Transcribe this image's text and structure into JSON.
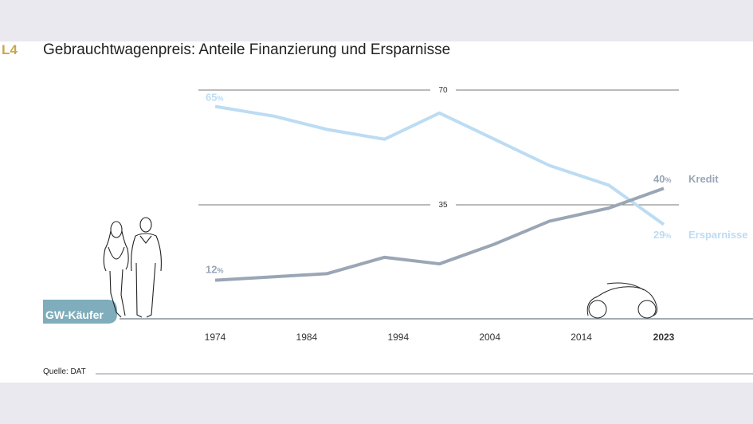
{
  "figure_label": "L4",
  "chart_data": {
    "type": "line",
    "title": "Gebrauchtwagenpreis: Anteile Finanzierung und Ersparnisse",
    "xlabel": "",
    "ylabel": "",
    "x_ticks": [
      "1974",
      "1984",
      "1994",
      "2004",
      "2014",
      "2023"
    ],
    "x_tick_values": [
      1974,
      1984,
      1994,
      2004,
      2014,
      2023
    ],
    "xlim": [
      1974,
      2023
    ],
    "y_gridlines": [
      35,
      70
    ],
    "ylim": [
      0,
      70
    ],
    "grid": true,
    "series": [
      {
        "name": "Ersparnisse",
        "color": "#bcdcf3",
        "x": [
          1974,
          1980.5,
          1986.2,
          1992.5,
          1998.5,
          2004.5,
          2010.5,
          2017,
          2023
        ],
        "values": [
          65,
          62,
          58,
          55,
          63,
          55,
          47,
          41,
          29
        ],
        "start_label": "65",
        "end_label": "29"
      },
      {
        "name": "Kredit",
        "color": "#9aa6b5",
        "x": [
          1974,
          1986.2,
          1992.5,
          1998.5,
          2004.5,
          2010.5,
          2017,
          2023
        ],
        "values": [
          12,
          14,
          19,
          17,
          23,
          30,
          34,
          40
        ],
        "start_label": "12",
        "end_label": "40"
      }
    ],
    "percent_sign": "%"
  },
  "badge": {
    "label": "GW-Käufer",
    "color": "#7fadbb"
  },
  "source": "Quelle: DAT"
}
